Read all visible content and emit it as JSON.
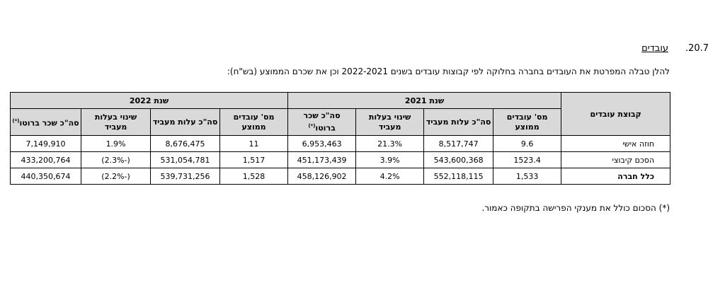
{
  "section": {
    "number": ".20.7",
    "title": "עובדים"
  },
  "intro": "להלן טבלה המפרטת את העובדים בחברה בחלוקה לפי קבוצות עובדים בשנים 2022-2021 וכן את שכרם הממוצע (בש\"ח):",
  "table": {
    "group_header": "קבוצת עובדים",
    "year_2021": "שנת 2021",
    "year_2022": "שנת 2022",
    "col_headers": {
      "avg_employees": "מס' עובדים ממוצע",
      "total_employer_cost": "סה\"כ עלות מעביד",
      "employer_cost_change": "שינוי בעלות מעביד",
      "total_gross_salary": "סה\"כ שכר ברוטו",
      "footnote_mark": "(*)"
    },
    "rows": [
      {
        "group": "חוזה אישי",
        "y2021": {
          "avg": "9.6",
          "cost": "8,517,747",
          "change": "21.3%",
          "gross": "6,953,463"
        },
        "y2022": {
          "avg": "11",
          "cost": "8,676,475",
          "change": "1.9%",
          "gross": "7,149,910"
        }
      },
      {
        "group": "הסכם קיבוצי",
        "y2021": {
          "avg": "1523.4",
          "cost": "543,600,368",
          "change": "3.9%",
          "gross": "451,173,439"
        },
        "y2022": {
          "avg": "1,517",
          "cost": "531,054,781",
          "change": "(-2.3%)",
          "gross": "433,200,764"
        }
      },
      {
        "group": "כלל חברה",
        "y2021": {
          "avg": "1,533",
          "cost": "552,118,115",
          "change": "4.2%",
          "gross": "458,126,902"
        },
        "y2022": {
          "avg": "1,528",
          "cost": "539,731,256",
          "change": "(-2.2%)",
          "gross": "440,350,674"
        }
      }
    ]
  },
  "footnote": "(*) הסכום כולל את מענקי הפרישה בתקופה כאמור."
}
